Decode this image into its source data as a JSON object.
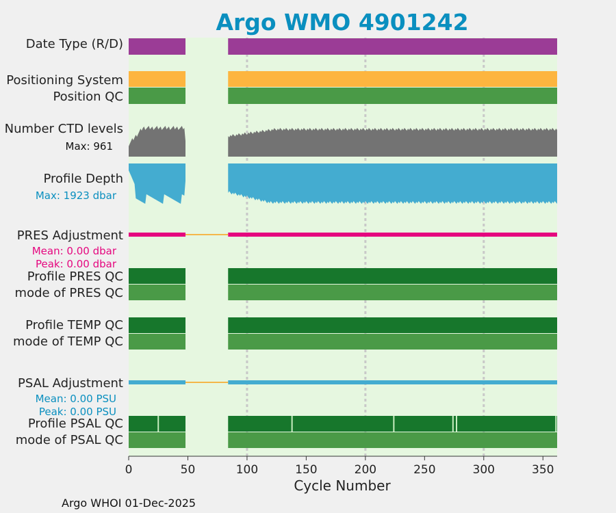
{
  "colors": {
    "background": "#f0f0f0",
    "plot_bg": "#e6f7e0",
    "gap_bg": "#e6f7e0",
    "title": "#0a8fbf",
    "date_type": "#9b3c96",
    "positioning": "#fdb53f",
    "qc_light": "#4a9a47",
    "qc_dark": "#17772c",
    "ctd": "#737373",
    "depth": "#44acd0",
    "pres_adj": "#e5077f",
    "psal_adj": "#44acd0",
    "gap_line": "#f4b74a",
    "grid": "#c8c8c8",
    "axis_text": "#222222"
  },
  "chart_data": {
    "type": "status-timeline",
    "title": "Argo WMO 4901242",
    "xlabel": "Cycle Number",
    "xlim": [
      0,
      362
    ],
    "xticks": [
      0,
      50,
      100,
      150,
      200,
      250,
      300,
      350
    ],
    "grid_x": [
      100,
      200,
      300
    ],
    "data_segments": [
      [
        0,
        48
      ],
      [
        84,
        362
      ]
    ],
    "gap": [
      48,
      84
    ],
    "footer": "Argo WHOI 01-Dec-2025",
    "rows": {
      "date_type": {
        "label": "Date Type (R/D)"
      },
      "positioning": {
        "label": "Positioning System"
      },
      "position_qc": {
        "label": "Position QC"
      },
      "ctd_levels": {
        "label": "Number CTD levels",
        "stat": "Max: 961",
        "max": 961
      },
      "profile_depth": {
        "label": "Profile Depth",
        "stat": "Max: 1923 dbar",
        "max_dbar": 1923
      },
      "pres_adjustment": {
        "label": "PRES Adjustment",
        "mean": "Mean: 0.00 dbar",
        "peak": "Peak: 0.00 dbar"
      },
      "profile_pres_qc": {
        "label": "Profile PRES QC"
      },
      "mode_pres_qc": {
        "label": "mode of PRES QC"
      },
      "profile_temp_qc": {
        "label": "Profile TEMP QC"
      },
      "mode_temp_qc": {
        "label": "mode of TEMP QC"
      },
      "psal_adjustment": {
        "label": "PSAL Adjustment",
        "mean": "Mean: 0.00 PSU",
        "peak": "Peak: 0.00 PSU"
      },
      "profile_psal_qc": {
        "label": "Profile PSAL QC",
        "fail_cycles": [
          25,
          138,
          224,
          274,
          277,
          361
        ]
      },
      "mode_psal_qc": {
        "label": "mode of PSAL QC"
      }
    }
  }
}
